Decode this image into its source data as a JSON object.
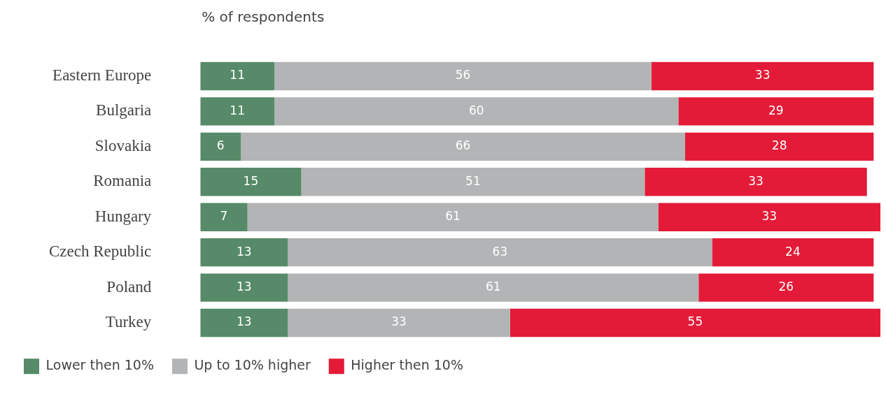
{
  "chart_data": {
    "type": "bar",
    "orientation": "horizontal",
    "stacked": true,
    "title": "% of respondents",
    "categories": [
      "Eastern Europe",
      "Bulgaria",
      "Slovakia",
      "Romania",
      "Hungary",
      "Czech Republic",
      "Poland",
      "Turkey"
    ],
    "series": [
      {
        "name": "Lower then 10%",
        "color": "#568a68",
        "values": [
          11,
          11,
          6,
          15,
          7,
          13,
          13,
          13
        ]
      },
      {
        "name": "Up to 10% higher",
        "color": "#b2b4b5",
        "values": [
          56,
          60,
          66,
          51,
          61,
          63,
          61,
          33
        ]
      },
      {
        "name": "Higher then 10%",
        "color": "#e31b38",
        "values": [
          33,
          29,
          28,
          33,
          33,
          24,
          26,
          55
        ]
      }
    ],
    "xlim": [
      0,
      101
    ],
    "tick_labels": "y",
    "data_labels": true,
    "legend": "bottom left"
  }
}
